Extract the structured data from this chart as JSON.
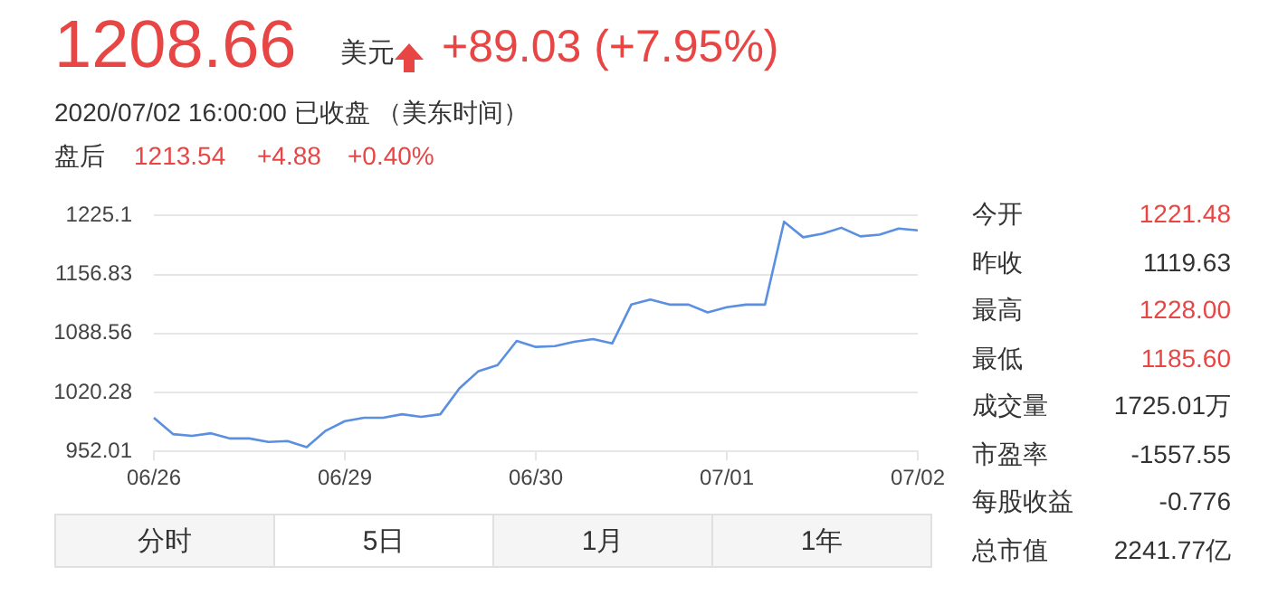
{
  "chart_data": {
    "type": "line",
    "categories": [
      "06/26",
      null,
      null,
      null,
      null,
      null,
      null,
      null,
      null,
      null,
      "06/29",
      null,
      null,
      null,
      null,
      null,
      null,
      null,
      null,
      null,
      "06/30",
      null,
      null,
      null,
      null,
      null,
      null,
      null,
      null,
      null,
      "07/01",
      null,
      null,
      null,
      null,
      null,
      null,
      null,
      null,
      null,
      "07/02"
    ],
    "series": [
      {
        "color": "#5b8fe0",
        "values": [
          991,
          972,
          970,
          973,
          967,
          967,
          963,
          964,
          957,
          976,
          987,
          991,
          991,
          995,
          992,
          995,
          1025,
          1045,
          1052,
          1080,
          1073,
          1074,
          1079,
          1082,
          1077,
          1122,
          1128,
          1122,
          1122,
          1113,
          1119,
          1122,
          1122,
          1218,
          1200,
          1204,
          1211,
          1201,
          1203,
          1210,
          1208
        ]
      }
    ],
    "ylim": [
      952.01,
      1225.1
    ],
    "yticks": [
      952.01,
      1020.28,
      1088.56,
      1156.83,
      1225.1
    ],
    "grid": "y",
    "marker": "none",
    "line_style": "solid",
    "annotations": [
      "1208.66",
      "美元",
      "+89.03 (+7.95%)",
      "2020/07/02 16:00:00  已收盘 （美东时间）",
      "盘后",
      "1213.54",
      "+4.88",
      "+0.40%",
      "今开",
      "1221.48",
      "昨收",
      "1119.63",
      "最高",
      "1228.00",
      "最低",
      "1185.60",
      "成交量",
      "1725.01万",
      "市盈率",
      "-1557.55",
      "每股收益",
      "-0.776",
      "总市值",
      "2241.77亿",
      "分时",
      "5日",
      "1月",
      "1年"
    ]
  }
}
